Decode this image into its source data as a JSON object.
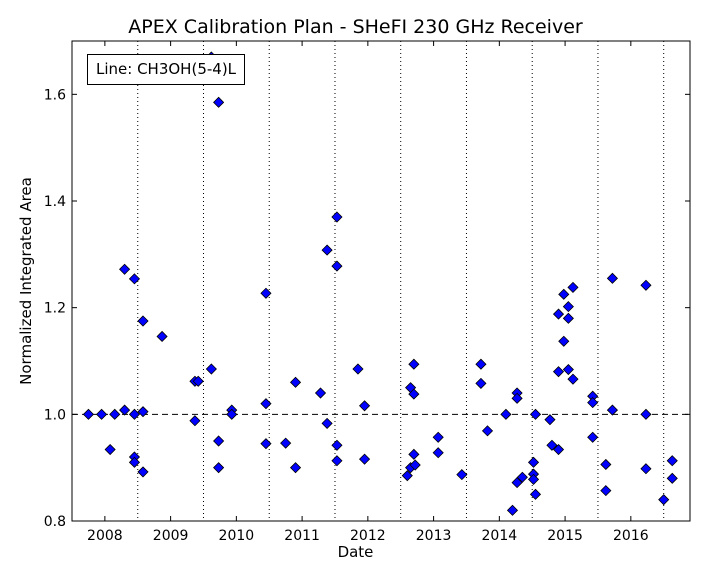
{
  "chart_data": {
    "type": "scatter",
    "title": "APEX Calibration Plan - SHeFI 230 GHz Receiver",
    "xlabel": "Date",
    "ylabel": "Normalized Integrated Area",
    "xlim": [
      2007.5,
      2016.9
    ],
    "ylim": [
      0.8,
      1.7
    ],
    "xticks": [
      "2008",
      "2009",
      "2010",
      "2011",
      "2012",
      "2013",
      "2014",
      "2015",
      "2016"
    ],
    "yticks": [
      "0.8",
      "1.0",
      "1.2",
      "1.4",
      "1.6"
    ],
    "vlines": [
      2008.5,
      2009.5,
      2010.5,
      2011.5,
      2012.5,
      2013.5,
      2014.5,
      2015.5,
      2016.5
    ],
    "reference_line": 1.0,
    "legend_text": "Line: CH3OH(5-4)L",
    "legend_position": "top-left",
    "marker_color": "#0000ff",
    "marker_shape": "diamond",
    "points": [
      [
        2007.75,
        1.0
      ],
      [
        2007.95,
        1.0
      ],
      [
        2008.08,
        0.934
      ],
      [
        2008.15,
        1.0
      ],
      [
        2008.3,
        1.272
      ],
      [
        2008.3,
        1.008
      ],
      [
        2008.45,
        1.254
      ],
      [
        2008.45,
        1.0
      ],
      [
        2008.45,
        0.92
      ],
      [
        2008.45,
        0.91
      ],
      [
        2008.58,
        1.175
      ],
      [
        2008.58,
        1.005
      ],
      [
        2008.58,
        0.892
      ],
      [
        2008.87,
        1.146
      ],
      [
        2009.37,
        1.062
      ],
      [
        2009.42,
        1.062
      ],
      [
        2009.37,
        0.988
      ],
      [
        2009.62,
        1.67
      ],
      [
        2009.62,
        1.085
      ],
      [
        2009.73,
        1.585
      ],
      [
        2009.73,
        0.95
      ],
      [
        2009.73,
        0.9
      ],
      [
        2009.93,
        1.008
      ],
      [
        2009.93,
        1.0
      ],
      [
        2010.45,
        1.227
      ],
      [
        2010.45,
        1.02
      ],
      [
        2010.45,
        0.945
      ],
      [
        2010.75,
        0.946
      ],
      [
        2010.9,
        1.06
      ],
      [
        2010.9,
        0.9
      ],
      [
        2011.28,
        1.04
      ],
      [
        2011.38,
        1.308
      ],
      [
        2011.38,
        0.983
      ],
      [
        2011.53,
        1.37
      ],
      [
        2011.53,
        1.278
      ],
      [
        2011.53,
        0.942
      ],
      [
        2011.53,
        0.913
      ],
      [
        2011.85,
        1.085
      ],
      [
        2011.95,
        1.016
      ],
      [
        2011.95,
        0.916
      ],
      [
        2012.6,
        0.885
      ],
      [
        2012.65,
        1.05
      ],
      [
        2012.65,
        0.9
      ],
      [
        2012.7,
        1.094
      ],
      [
        2012.7,
        1.038
      ],
      [
        2012.7,
        0.925
      ],
      [
        2012.72,
        0.905
      ],
      [
        2013.07,
        0.957
      ],
      [
        2013.07,
        0.928
      ],
      [
        2013.43,
        0.887
      ],
      [
        2013.72,
        1.094
      ],
      [
        2013.72,
        1.058
      ],
      [
        2013.82,
        0.969
      ],
      [
        2014.1,
        1.0
      ],
      [
        2014.2,
        0.82
      ],
      [
        2014.27,
        1.04
      ],
      [
        2014.27,
        1.03
      ],
      [
        2014.27,
        0.872
      ],
      [
        2014.35,
        0.882
      ],
      [
        2014.52,
        0.91
      ],
      [
        2014.52,
        0.888
      ],
      [
        2014.52,
        0.878
      ],
      [
        2014.55,
        1.0
      ],
      [
        2014.55,
        0.85
      ],
      [
        2014.77,
        0.99
      ],
      [
        2014.8,
        0.942
      ],
      [
        2014.9,
        1.188
      ],
      [
        2014.9,
        1.08
      ],
      [
        2014.9,
        0.934
      ],
      [
        2014.98,
        1.225
      ],
      [
        2014.98,
        1.137
      ],
      [
        2015.05,
        1.202
      ],
      [
        2015.05,
        1.18
      ],
      [
        2015.05,
        1.084
      ],
      [
        2015.12,
        1.238
      ],
      [
        2015.12,
        1.066
      ],
      [
        2015.42,
        1.034
      ],
      [
        2015.42,
        1.022
      ],
      [
        2015.42,
        0.957
      ],
      [
        2015.62,
        0.906
      ],
      [
        2015.62,
        0.857
      ],
      [
        2015.72,
        1.255
      ],
      [
        2015.72,
        1.008
      ],
      [
        2016.23,
        1.242
      ],
      [
        2016.23,
        1.0
      ],
      [
        2016.23,
        0.898
      ],
      [
        2016.5,
        0.84
      ],
      [
        2016.63,
        0.913
      ],
      [
        2016.63,
        0.88
      ]
    ]
  }
}
